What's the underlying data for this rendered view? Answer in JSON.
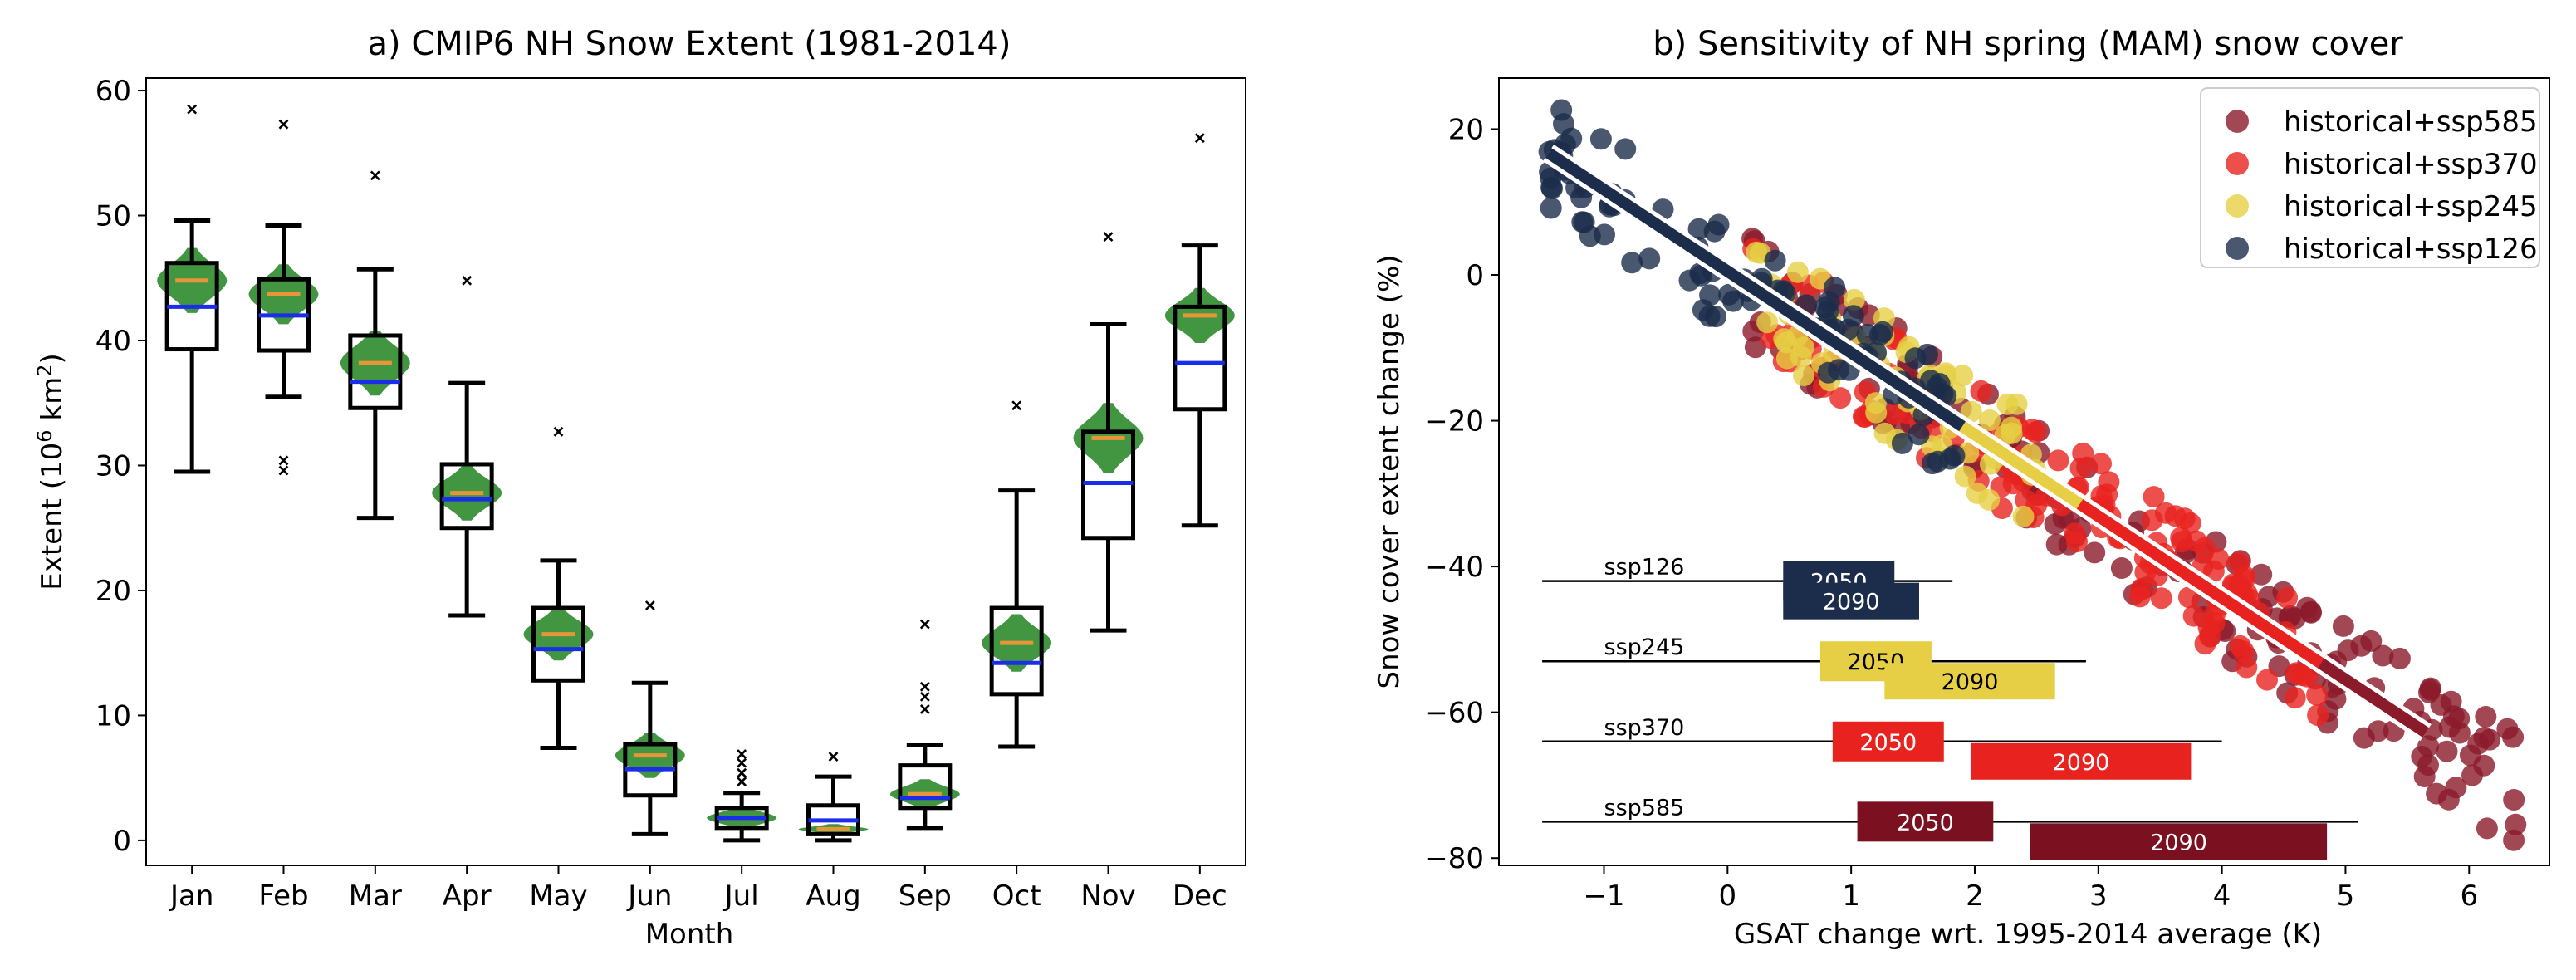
{
  "chart_data": [
    {
      "type": "box-violin",
      "title": "a) CMIP6 NH Snow Extent (1981-2014)",
      "xlabel": "Month",
      "ylabel_prefix": "Extent (10",
      "ylabel_sup1": "6",
      "ylabel_mid": " km",
      "ylabel_sup2": "2",
      "ylabel_suffix": ")",
      "ylim": [
        -2,
        61
      ],
      "yticks": [
        0,
        10,
        20,
        30,
        40,
        50,
        60
      ],
      "categories": [
        "Jan",
        "Feb",
        "Mar",
        "Apr",
        "May",
        "Jun",
        "Jul",
        "Aug",
        "Sep",
        "Oct",
        "Nov",
        "Dec"
      ],
      "boxes": [
        {
          "whislo": 29.5,
          "q1": 39.3,
          "q3": 46.2,
          "whishi": 49.6,
          "median": 42.7,
          "outliers": [
            58.5
          ]
        },
        {
          "whislo": 35.5,
          "q1": 39.2,
          "q3": 44.9,
          "whishi": 49.2,
          "median": 42.0,
          "outliers": [
            57.3,
            30.4,
            29.6
          ]
        },
        {
          "whislo": 25.8,
          "q1": 34.6,
          "q3": 40.4,
          "whishi": 45.7,
          "median": 36.7,
          "outliers": [
            53.2
          ]
        },
        {
          "whislo": 18.0,
          "q1": 25.0,
          "q3": 30.1,
          "whishi": 36.6,
          "median": 27.3,
          "outliers": [
            44.8
          ]
        },
        {
          "whislo": 7.4,
          "q1": 12.8,
          "q3": 18.6,
          "whishi": 22.4,
          "median": 15.3,
          "outliers": [
            32.7
          ]
        },
        {
          "whislo": 0.5,
          "q1": 3.6,
          "q3": 7.7,
          "whishi": 12.6,
          "median": 5.7,
          "outliers": [
            18.8
          ]
        },
        {
          "whislo": 0.0,
          "q1": 1.0,
          "q3": 2.6,
          "whishi": 3.8,
          "median": 1.8,
          "outliers": [
            4.7,
            5.4,
            6.2,
            6.9
          ]
        },
        {
          "whislo": 0.0,
          "q1": 0.5,
          "q3": 2.8,
          "whishi": 5.1,
          "median": 1.6,
          "outliers": [
            6.7
          ]
        },
        {
          "whislo": 1.0,
          "q1": 2.6,
          "q3": 6.0,
          "whishi": 7.6,
          "median": 3.4,
          "outliers": [
            10.5,
            11.5,
            12.3,
            17.3
          ]
        },
        {
          "whislo": 7.5,
          "q1": 11.7,
          "q3": 18.6,
          "whishi": 28.0,
          "median": 14.2,
          "outliers": [
            34.8
          ]
        },
        {
          "whislo": 16.8,
          "q1": 24.2,
          "q3": 32.7,
          "whishi": 41.3,
          "median": 28.6,
          "outliers": [
            48.3
          ]
        },
        {
          "whislo": 25.2,
          "q1": 34.5,
          "q3": 42.7,
          "whishi": 47.6,
          "median": 38.2,
          "outliers": [
            56.2
          ]
        }
      ],
      "observations": [
        {
          "median": 44.8,
          "spread": 2.6
        },
        {
          "median": 43.7,
          "spread": 2.4
        },
        {
          "median": 38.2,
          "spread": 2.6
        },
        {
          "median": 27.8,
          "spread": 2.2
        },
        {
          "median": 16.5,
          "spread": 2.1
        },
        {
          "median": 6.8,
          "spread": 1.8
        },
        {
          "median": 1.8,
          "spread": 0.9
        },
        {
          "median": 0.9,
          "spread": 0.4
        },
        {
          "median": 3.7,
          "spread": 1.2
        },
        {
          "median": 15.8,
          "spread": 2.3
        },
        {
          "median": 32.2,
          "spread": 2.8
        },
        {
          "median": 42.0,
          "spread": 2.2
        }
      ],
      "colors": {
        "violin": "#2e8b2e",
        "obs_median": "#e8953a",
        "model_median": "#1a2ee8"
      }
    },
    {
      "type": "scatter",
      "title": "b) Sensitivity of NH spring (MAM) snow cover",
      "xlabel": "GSAT change wrt. 1995-2014 average (K)",
      "ylabel": "Snow cover extent change (%)",
      "xlim": [
        -1.85,
        6.65
      ],
      "ylim": [
        -81,
        27
      ],
      "xticks": [
        -1,
        0,
        1,
        2,
        3,
        4,
        5,
        6
      ],
      "yticks": [
        -80,
        -60,
        -40,
        -20,
        0,
        20
      ],
      "legend_position": "top-right",
      "series": [
        {
          "name": "historical+ssp585",
          "color": "#8b1a2b",
          "xmin": 0.2,
          "xmax": 6.4,
          "line_x": [
            4.8,
            5.65
          ]
        },
        {
          "name": "historical+ssp370",
          "color": "#e8231f",
          "xmin": 0.2,
          "xmax": 4.8,
          "line_x": [
            2.85,
            4.8
          ]
        },
        {
          "name": "historical+ssp245",
          "color": "#e6cf45",
          "xmin": 0.2,
          "xmax": 2.5,
          "line_x": [
            1.9,
            2.85
          ]
        },
        {
          "name": "historical+ssp126",
          "color": "#1c2d4b",
          "xmin": -1.45,
          "xmax": 1.9,
          "line_x": [
            -1.45,
            1.9
          ]
        }
      ],
      "regression": {
        "slope": -11.2,
        "intercept": 0.5
      },
      "ranges": [
        {
          "scenario": "ssp126",
          "y": -42,
          "line": [
            -1.5,
            1.82
          ],
          "bars": [
            {
              "label": "2050",
              "x": [
                0.45,
                1.35
              ]
            },
            {
              "label": "2090",
              "x": [
                0.45,
                1.55
              ]
            }
          ],
          "color": "#1c2d4b"
        },
        {
          "scenario": "ssp245",
          "y": -53,
          "line": [
            -1.5,
            2.9
          ],
          "bars": [
            {
              "label": "2050",
              "x": [
                0.75,
                1.65
              ]
            },
            {
              "label": "2090",
              "x": [
                1.27,
                2.65
              ]
            }
          ],
          "color": "#e6cf45"
        },
        {
          "scenario": "ssp370",
          "y": -64,
          "line": [
            -1.5,
            4.0
          ],
          "bars": [
            {
              "label": "2050",
              "x": [
                0.85,
                1.75
              ]
            },
            {
              "label": "2090",
              "x": [
                1.97,
                3.75
              ]
            }
          ],
          "color": "#e8231f"
        },
        {
          "scenario": "ssp585",
          "y": -75,
          "line": [
            -1.5,
            5.1
          ],
          "bars": [
            {
              "label": "2050",
              "x": [
                1.05,
                2.15
              ]
            },
            {
              "label": "2090",
              "x": [
                2.45,
                4.85
              ]
            }
          ],
          "color": "#7a1020"
        }
      ]
    }
  ]
}
